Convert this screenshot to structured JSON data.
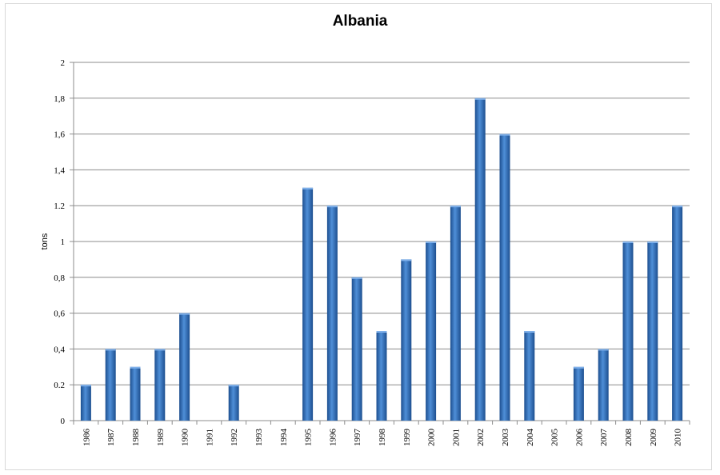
{
  "chart_data": {
    "type": "bar",
    "title": "Albania",
    "xlabel": "",
    "ylabel": "tons",
    "ylim": [
      0,
      2
    ],
    "yticks": [
      0,
      0.2,
      0.4,
      0.6,
      0.8,
      1,
      1.2,
      1.4,
      1.6,
      1.8,
      2
    ],
    "ytick_labels": [
      "0",
      "0.2",
      "0,4",
      "0,6",
      "0,8",
      "1",
      "1.2",
      "1,4",
      "1,6",
      "1,8",
      "2"
    ],
    "categories": [
      "1986",
      "1987",
      "1988",
      "1989",
      "1990",
      "1991",
      "1992",
      "1993",
      "1994",
      "1995",
      "1996",
      "1997",
      "1998",
      "1999",
      "2000",
      "2001",
      "2002",
      "2003",
      "2004",
      "2005",
      "2006",
      "2007",
      "2008",
      "2009",
      "2010"
    ],
    "values": [
      0.2,
      0.4,
      0.3,
      0.4,
      0.6,
      0,
      0.2,
      0,
      0,
      1.3,
      1.2,
      0.8,
      0.5,
      0.9,
      1.0,
      1.2,
      1.8,
      1.6,
      0.5,
      0,
      0.3,
      0.4,
      1.0,
      1.0,
      1.2
    ],
    "grid": true,
    "bar_color": "#2f6db5"
  }
}
